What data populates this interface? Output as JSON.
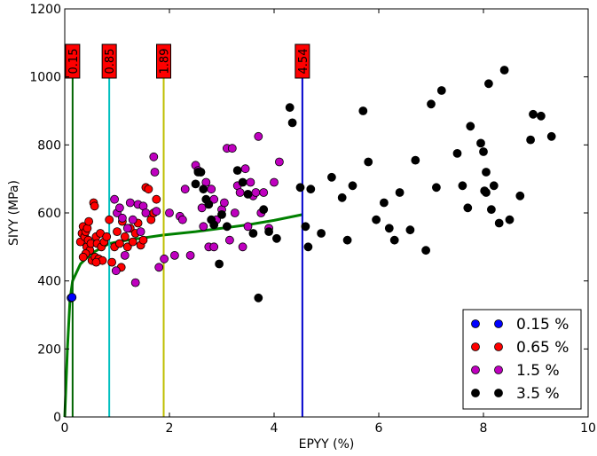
{
  "chart_data": {
    "type": "scatter",
    "title": "",
    "xlabel": "EPYY (%)",
    "ylabel": "SIYY (MPa)",
    "xlim": [
      0,
      10
    ],
    "ylim": [
      0,
      1200
    ],
    "xticks": [
      0,
      2,
      4,
      6,
      8,
      10
    ],
    "yticks": [
      0,
      200,
      400,
      600,
      800,
      1000,
      1200
    ],
    "grid": false,
    "legend_position": "bottom-right",
    "vertical_lines": [
      {
        "x": 0.15,
        "label": "0.15",
        "color": "#006400"
      },
      {
        "x": 0.85,
        "label": "0.85",
        "color": "#00bfbf"
      },
      {
        "x": 1.89,
        "label": "1.89",
        "color": "#bfbf00"
      },
      {
        "x": 4.54,
        "label": "4.54",
        "color": "#0000cc"
      }
    ],
    "curve": {
      "color": "#008000",
      "points": [
        [
          0,
          0
        ],
        [
          0.05,
          200
        ],
        [
          0.1,
          345
        ],
        [
          0.15,
          400
        ],
        [
          0.3,
          450
        ],
        [
          0.5,
          480
        ],
        [
          0.85,
          510
        ],
        [
          1.2,
          520
        ],
        [
          1.89,
          535
        ],
        [
          2.5,
          545
        ],
        [
          3.0,
          555
        ],
        [
          3.5,
          565
        ],
        [
          4.0,
          578
        ],
        [
          4.54,
          595
        ]
      ]
    },
    "series": [
      {
        "name": "0.15 %",
        "color": "#0000ff",
        "points": [
          [
            0.12,
            350
          ],
          [
            0.14,
            352
          ]
        ]
      },
      {
        "name": "0.65 %",
        "color": "#ff0000",
        "points": [
          [
            0.3,
            515
          ],
          [
            0.33,
            540
          ],
          [
            0.35,
            560
          ],
          [
            0.38,
            530
          ],
          [
            0.4,
            545
          ],
          [
            0.42,
            500
          ],
          [
            0.43,
            555
          ],
          [
            0.45,
            520
          ],
          [
            0.46,
            575
          ],
          [
            0.48,
            490
          ],
          [
            0.5,
            510
          ],
          [
            0.52,
            460
          ],
          [
            0.55,
            630
          ],
          [
            0.57,
            620
          ],
          [
            0.58,
            470
          ],
          [
            0.6,
            530
          ],
          [
            0.62,
            510
          ],
          [
            0.65,
            465
          ],
          [
            0.68,
            540
          ],
          [
            0.7,
            500
          ],
          [
            0.72,
            460
          ],
          [
            0.75,
            515
          ],
          [
            0.8,
            530
          ],
          [
            0.85,
            580
          ],
          [
            0.9,
            455
          ],
          [
            0.95,
            500
          ],
          [
            1.0,
            545
          ],
          [
            1.05,
            510
          ],
          [
            1.1,
            575
          ],
          [
            1.15,
            530
          ],
          [
            1.2,
            500
          ],
          [
            1.25,
            555
          ],
          [
            1.3,
            515
          ],
          [
            1.35,
            540
          ],
          [
            1.4,
            570
          ],
          [
            1.45,
            505
          ],
          [
            1.5,
            520
          ],
          [
            1.55,
            675
          ],
          [
            1.6,
            670
          ],
          [
            1.65,
            580
          ],
          [
            1.7,
            600
          ],
          [
            1.75,
            640
          ],
          [
            0.4,
            480
          ],
          [
            0.6,
            455
          ],
          [
            0.35,
            470
          ],
          [
            1.08,
            440
          ]
        ]
      },
      {
        "name": "1.5 %",
        "color": "#bf00bf",
        "points": [
          [
            0.95,
            640
          ],
          [
            1.0,
            600
          ],
          [
            1.05,
            615
          ],
          [
            1.1,
            585
          ],
          [
            1.2,
            555
          ],
          [
            1.25,
            630
          ],
          [
            1.3,
            580
          ],
          [
            1.35,
            395
          ],
          [
            1.4,
            625
          ],
          [
            1.45,
            545
          ],
          [
            1.5,
            620
          ],
          [
            1.55,
            600
          ],
          [
            1.7,
            765
          ],
          [
            1.72,
            720
          ],
          [
            1.75,
            605
          ],
          [
            1.8,
            440
          ],
          [
            1.9,
            465
          ],
          [
            2.0,
            600
          ],
          [
            2.1,
            475
          ],
          [
            2.2,
            590
          ],
          [
            2.25,
            580
          ],
          [
            2.3,
            670
          ],
          [
            2.4,
            475
          ],
          [
            2.5,
            740
          ],
          [
            2.55,
            725
          ],
          [
            2.6,
            720
          ],
          [
            2.62,
            615
          ],
          [
            2.65,
            560
          ],
          [
            2.7,
            690
          ],
          [
            2.75,
            500
          ],
          [
            2.8,
            670
          ],
          [
            2.85,
            640
          ],
          [
            2.9,
            580
          ],
          [
            3.0,
            610
          ],
          [
            3.05,
            630
          ],
          [
            3.1,
            790
          ],
          [
            3.15,
            520
          ],
          [
            3.2,
            790
          ],
          [
            3.25,
            600
          ],
          [
            3.3,
            680
          ],
          [
            3.35,
            660
          ],
          [
            3.4,
            500
          ],
          [
            3.45,
            730
          ],
          [
            3.5,
            560
          ],
          [
            3.55,
            690
          ],
          [
            3.6,
            650
          ],
          [
            3.65,
            660
          ],
          [
            3.7,
            825
          ],
          [
            3.75,
            600
          ],
          [
            3.8,
            660
          ],
          [
            3.9,
            555
          ],
          [
            4.0,
            690
          ],
          [
            4.1,
            750
          ],
          [
            2.85,
            500
          ],
          [
            1.15,
            475
          ],
          [
            0.98,
            430
          ]
        ]
      },
      {
        "name": "3.5 %",
        "color": "#000000",
        "points": [
          [
            2.5,
            685
          ],
          [
            2.55,
            720
          ],
          [
            2.6,
            720
          ],
          [
            2.65,
            670
          ],
          [
            2.7,
            640
          ],
          [
            2.75,
            625
          ],
          [
            2.8,
            580
          ],
          [
            2.85,
            565
          ],
          [
            2.95,
            450
          ],
          [
            3.0,
            595
          ],
          [
            3.1,
            560
          ],
          [
            3.3,
            725
          ],
          [
            3.4,
            690
          ],
          [
            3.5,
            655
          ],
          [
            3.6,
            540
          ],
          [
            3.7,
            350
          ],
          [
            3.8,
            610
          ],
          [
            3.9,
            545
          ],
          [
            4.05,
            525
          ],
          [
            4.3,
            910
          ],
          [
            4.35,
            865
          ],
          [
            4.5,
            675
          ],
          [
            4.6,
            560
          ],
          [
            4.65,
            500
          ],
          [
            4.7,
            670
          ],
          [
            4.9,
            540
          ],
          [
            5.1,
            705
          ],
          [
            5.3,
            645
          ],
          [
            5.4,
            520
          ],
          [
            5.5,
            680
          ],
          [
            5.7,
            900
          ],
          [
            5.8,
            750
          ],
          [
            5.95,
            580
          ],
          [
            6.1,
            630
          ],
          [
            6.2,
            555
          ],
          [
            6.3,
            520
          ],
          [
            6.4,
            660
          ],
          [
            6.6,
            550
          ],
          [
            6.7,
            755
          ],
          [
            6.9,
            490
          ],
          [
            7.0,
            920
          ],
          [
            7.1,
            675
          ],
          [
            7.2,
            960
          ],
          [
            7.5,
            775
          ],
          [
            7.6,
            680
          ],
          [
            7.7,
            615
          ],
          [
            7.75,
            855
          ],
          [
            7.95,
            805
          ],
          [
            8.0,
            780
          ],
          [
            8.02,
            665
          ],
          [
            8.05,
            720
          ],
          [
            8.1,
            980
          ],
          [
            8.15,
            610
          ],
          [
            8.2,
            680
          ],
          [
            8.3,
            570
          ],
          [
            8.4,
            1020
          ],
          [
            8.5,
            580
          ],
          [
            8.7,
            650
          ],
          [
            8.9,
            815
          ],
          [
            8.95,
            890
          ],
          [
            9.1,
            885
          ],
          [
            9.3,
            825
          ],
          [
            8.05,
            660
          ]
        ]
      }
    ]
  }
}
